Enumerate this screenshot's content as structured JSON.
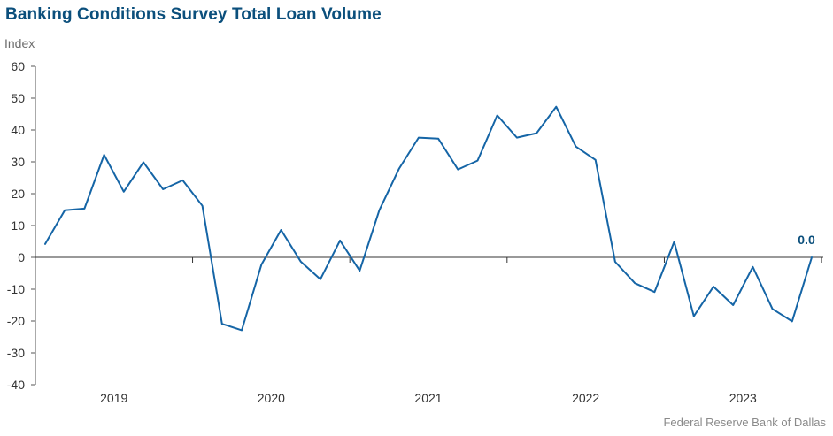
{
  "chart_data": {
    "type": "line",
    "title": "Banking Conditions Survey Total Loan Volume",
    "ylabel": "Index",
    "xlabel": "",
    "ylim": [
      -40,
      60
    ],
    "yticks": [
      -40,
      -30,
      -20,
      -10,
      0,
      10,
      20,
      30,
      40,
      50,
      60
    ],
    "xtick_labels": [
      "2019",
      "2020",
      "2021",
      "2022",
      "2023"
    ],
    "grid": false,
    "series": [
      {
        "name": "",
        "color": "#1565a6",
        "values": [
          4.2,
          14.8,
          15.3,
          32.2,
          20.6,
          29.9,
          21.4,
          24.2,
          16.2,
          -20.9,
          -22.9,
          -2.3,
          8.6,
          -1.3,
          -6.9,
          5.3,
          -4.2,
          14.8,
          27.8,
          37.6,
          37.3,
          27.6,
          30.4,
          44.6,
          37.6,
          39.0,
          47.3,
          34.8,
          30.6,
          -1.4,
          -8.1,
          -10.9,
          4.9,
          -18.5,
          -9.2,
          -15.0,
          -3.0,
          -16.2,
          -20.1,
          0.0
        ]
      }
    ],
    "annotations": [
      {
        "text": "0.0",
        "point_index": 39,
        "value": 0.0
      }
    ]
  },
  "source": "Federal Reserve Bank of Dallas"
}
